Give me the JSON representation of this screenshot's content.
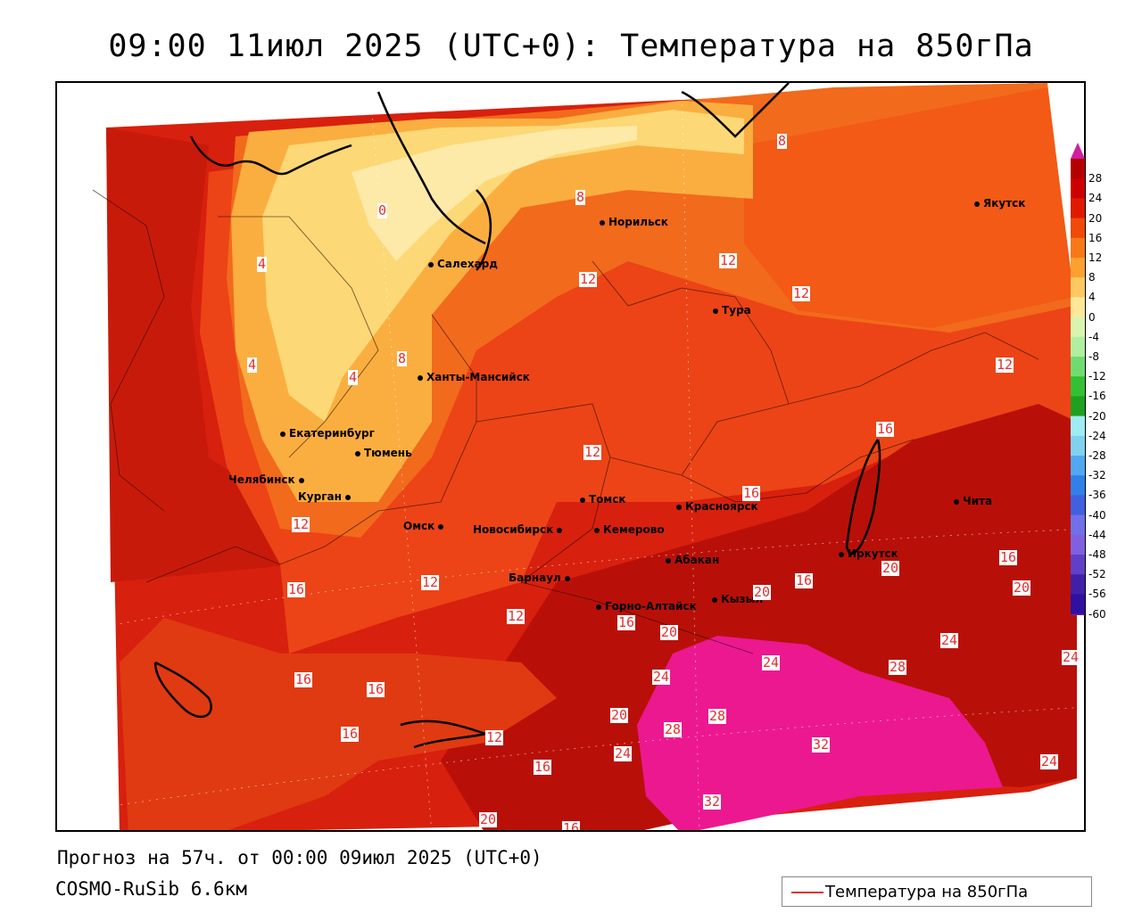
{
  "title": "09:00 11июл 2025 (UTC+0): Температура на 850гПа",
  "footer": {
    "forecast": "Прогноз на 57ч. от 00:00 09июл 2025 (UTC+0)",
    "model": "COSMO-RuSib 6.6км"
  },
  "legend": {
    "label": "Температура на 850гПа",
    "color": "#e23030"
  },
  "colorbar": {
    "ticks": [
      "28",
      "24",
      "20",
      "16",
      "12",
      "8",
      "4",
      "0",
      "-4",
      "-8",
      "-12",
      "-16",
      "-20",
      "-24",
      "-28",
      "-32",
      "-36",
      "-40",
      "-44",
      "-48",
      "-52",
      "-56",
      "-60"
    ],
    "colors": [
      "#b40000",
      "#cc0000",
      "#e01a00",
      "#f04a0a",
      "#f87818",
      "#fca030",
      "#fdc860",
      "#fde89a",
      "#d8f5b0",
      "#b0eea0",
      "#70dc70",
      "#34c034",
      "#20a020",
      "#a0ecf4",
      "#80d0f0",
      "#50a8f0",
      "#3080e8",
      "#4060e0",
      "#7070e8",
      "#8060e0",
      "#6040c8",
      "#4020a8",
      "#3010a0"
    ],
    "top_arrow_color": "#d020a0",
    "bottom_arrow_color": "#6020c0"
  },
  "cities": [
    {
      "name": "Норильск"
    },
    {
      "name": "Якутск"
    },
    {
      "name": "Салехард"
    },
    {
      "name": "Тура"
    },
    {
      "name": "Ханты-Мансийск"
    },
    {
      "name": "Екатеринбург"
    },
    {
      "name": "Тюмень"
    },
    {
      "name": "Челябинск"
    },
    {
      "name": "Курган"
    },
    {
      "name": "Омск"
    },
    {
      "name": "Новосибирск"
    },
    {
      "name": "Томск"
    },
    {
      "name": "Кемерово"
    },
    {
      "name": "Красноярск"
    },
    {
      "name": "Барнаул"
    },
    {
      "name": "Абакан"
    },
    {
      "name": "Иркутск"
    },
    {
      "name": "Чита"
    },
    {
      "name": "Кызыл"
    },
    {
      "name": "Горно-Алтайск"
    }
  ],
  "contour_labels": [
    "8",
    "8",
    "0",
    "4",
    "12",
    "12",
    "12",
    "8",
    "4",
    "4",
    "12",
    "12",
    "16",
    "16",
    "16",
    "12",
    "12",
    "16",
    "12",
    "20",
    "16",
    "20",
    "20",
    "16",
    "20",
    "24",
    "24",
    "28",
    "24",
    "16",
    "12",
    "16",
    "20",
    "28",
    "28",
    "24",
    "32",
    "16",
    "32",
    "24",
    "20",
    "16",
    "24",
    "16"
  ]
}
